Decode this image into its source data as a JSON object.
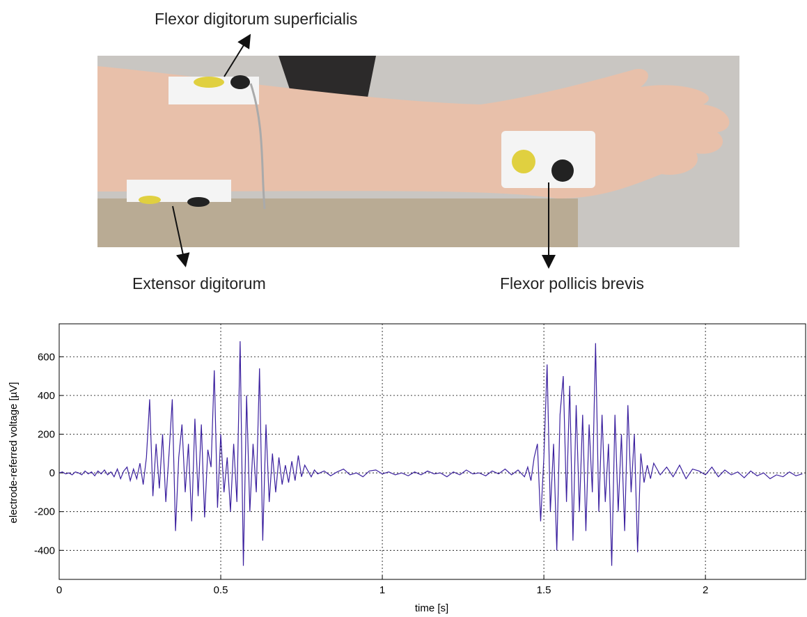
{
  "photo": {
    "labels": [
      "Flexor digitorum superficialis",
      "Extensor digitorum",
      "Flexor pollicis brevis"
    ]
  },
  "chart_data": {
    "type": "line",
    "xlabel": "time [s]",
    "ylabel": "electrode-referred voltage [µV]",
    "color": "#3a1f9e",
    "xlim": [
      0,
      2.31
    ],
    "ylim": [
      -550,
      770
    ],
    "xticks": [
      0,
      0.5,
      1,
      1.5,
      2
    ],
    "yticks": [
      -400,
      -200,
      0,
      200,
      400,
      600
    ],
    "grid": true,
    "x": [
      0,
      0.01,
      0.02,
      0.03,
      0.04,
      0.05,
      0.06,
      0.07,
      0.08,
      0.09,
      0.1,
      0.11,
      0.12,
      0.13,
      0.14,
      0.15,
      0.16,
      0.17,
      0.18,
      0.19,
      0.2,
      0.21,
      0.22,
      0.23,
      0.24,
      0.25,
      0.26,
      0.27,
      0.28,
      0.29,
      0.3,
      0.31,
      0.32,
      0.33,
      0.34,
      0.35,
      0.36,
      0.37,
      0.38,
      0.39,
      0.4,
      0.41,
      0.42,
      0.43,
      0.44,
      0.45,
      0.46,
      0.47,
      0.48,
      0.49,
      0.5,
      0.51,
      0.52,
      0.53,
      0.54,
      0.55,
      0.56,
      0.57,
      0.58,
      0.59,
      0.6,
      0.61,
      0.62,
      0.63,
      0.64,
      0.65,
      0.66,
      0.67,
      0.68,
      0.69,
      0.7,
      0.71,
      0.72,
      0.73,
      0.74,
      0.75,
      0.76,
      0.77,
      0.78,
      0.79,
      0.8,
      0.82,
      0.84,
      0.86,
      0.88,
      0.9,
      0.92,
      0.94,
      0.96,
      0.98,
      1,
      1.02,
      1.04,
      1.06,
      1.08,
      1.1,
      1.12,
      1.14,
      1.16,
      1.18,
      1.2,
      1.22,
      1.24,
      1.26,
      1.28,
      1.3,
      1.32,
      1.34,
      1.36,
      1.38,
      1.4,
      1.42,
      1.44,
      1.45,
      1.46,
      1.47,
      1.48,
      1.49,
      1.5,
      1.51,
      1.52,
      1.53,
      1.54,
      1.55,
      1.56,
      1.57,
      1.58,
      1.59,
      1.6,
      1.61,
      1.62,
      1.63,
      1.64,
      1.65,
      1.66,
      1.67,
      1.68,
      1.69,
      1.7,
      1.71,
      1.72,
      1.73,
      1.74,
      1.75,
      1.76,
      1.77,
      1.78,
      1.79,
      1.8,
      1.81,
      1.82,
      1.83,
      1.84,
      1.85,
      1.86,
      1.88,
      1.9,
      1.92,
      1.94,
      1.96,
      1.98,
      2,
      2.02,
      2.04,
      2.06,
      2.08,
      2.1,
      2.12,
      2.14,
      2.16,
      2.18,
      2.2,
      2.22,
      2.24,
      2.26,
      2.28,
      2.3
    ],
    "values": [
      0,
      5,
      -5,
      0,
      -10,
      5,
      0,
      -10,
      10,
      -5,
      5,
      -15,
      10,
      -5,
      15,
      -10,
      5,
      -20,
      20,
      -30,
      10,
      30,
      -40,
      20,
      -30,
      50,
      -60,
      80,
      380,
      -120,
      150,
      -80,
      200,
      -150,
      100,
      380,
      -300,
      80,
      250,
      -100,
      150,
      -250,
      280,
      -120,
      250,
      -230,
      120,
      30,
      530,
      -180,
      200,
      -100,
      80,
      -200,
      150,
      -150,
      680,
      -480,
      400,
      -200,
      150,
      -100,
      540,
      -350,
      250,
      -150,
      100,
      -100,
      80,
      -60,
      40,
      -50,
      60,
      -40,
      90,
      -20,
      40,
      10,
      -20,
      15,
      -5,
      10,
      -15,
      5,
      20,
      -10,
      0,
      -20,
      10,
      15,
      -5,
      5,
      -10,
      0,
      -15,
      5,
      -10,
      10,
      -5,
      0,
      -20,
      5,
      -10,
      15,
      -5,
      0,
      -15,
      10,
      -5,
      20,
      -10,
      15,
      -20,
      30,
      -40,
      80,
      150,
      -250,
      80,
      560,
      -200,
      150,
      -400,
      300,
      500,
      -150,
      450,
      -350,
      350,
      -200,
      300,
      -300,
      250,
      -100,
      670,
      -200,
      300,
      -150,
      150,
      -480,
      300,
      -200,
      200,
      -300,
      350,
      -100,
      200,
      -410,
      100,
      -50,
      40,
      -30,
      50,
      20,
      -10,
      30,
      -20,
      40,
      -30,
      20,
      10,
      -10,
      30,
      -20,
      15,
      -10,
      5,
      -25,
      10,
      -15,
      0,
      -30,
      -10,
      -20,
      5,
      -15,
      -5
    ]
  }
}
